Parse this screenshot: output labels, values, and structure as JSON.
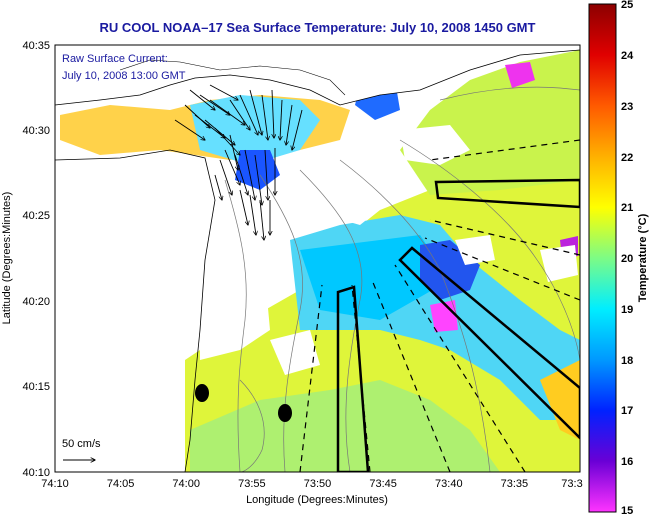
{
  "title": "RU COOL  NOAA–17  Sea Surface Temperature:  July 10, 2008 1450 GMT",
  "current_note": {
    "line1": "Raw Surface Current:",
    "line2": "July 10, 2008 13:00 GMT"
  },
  "scale_label": "50 cm/s",
  "x_axis": {
    "label": "Longitude (Degrees:Minutes)",
    "ticks": [
      "74:10",
      "74:05",
      "74:00",
      "73:55",
      "73:50",
      "73:45",
      "73:40",
      "73:35",
      "73:3"
    ]
  },
  "y_axis": {
    "label": "Latitude (Degrees:Minutes)",
    "ticks": [
      "40:35",
      "40:30",
      "40:25",
      "40:20",
      "40:15",
      "40:10"
    ]
  },
  "colorbar": {
    "label": "Temperature (°C)",
    "ticks": [
      "25",
      "24",
      "23",
      "22",
      "21",
      "20",
      "19",
      "18",
      "17",
      "16",
      "15"
    ],
    "range": [
      15,
      25
    ],
    "stops": [
      "#ff33ff",
      "#6a00d6",
      "#0022ff",
      "#0099ff",
      "#00eeff",
      "#7dfc85",
      "#ffff00",
      "#ffb000",
      "#ff5a00",
      "#e00000",
      "#8c0000"
    ]
  }
}
